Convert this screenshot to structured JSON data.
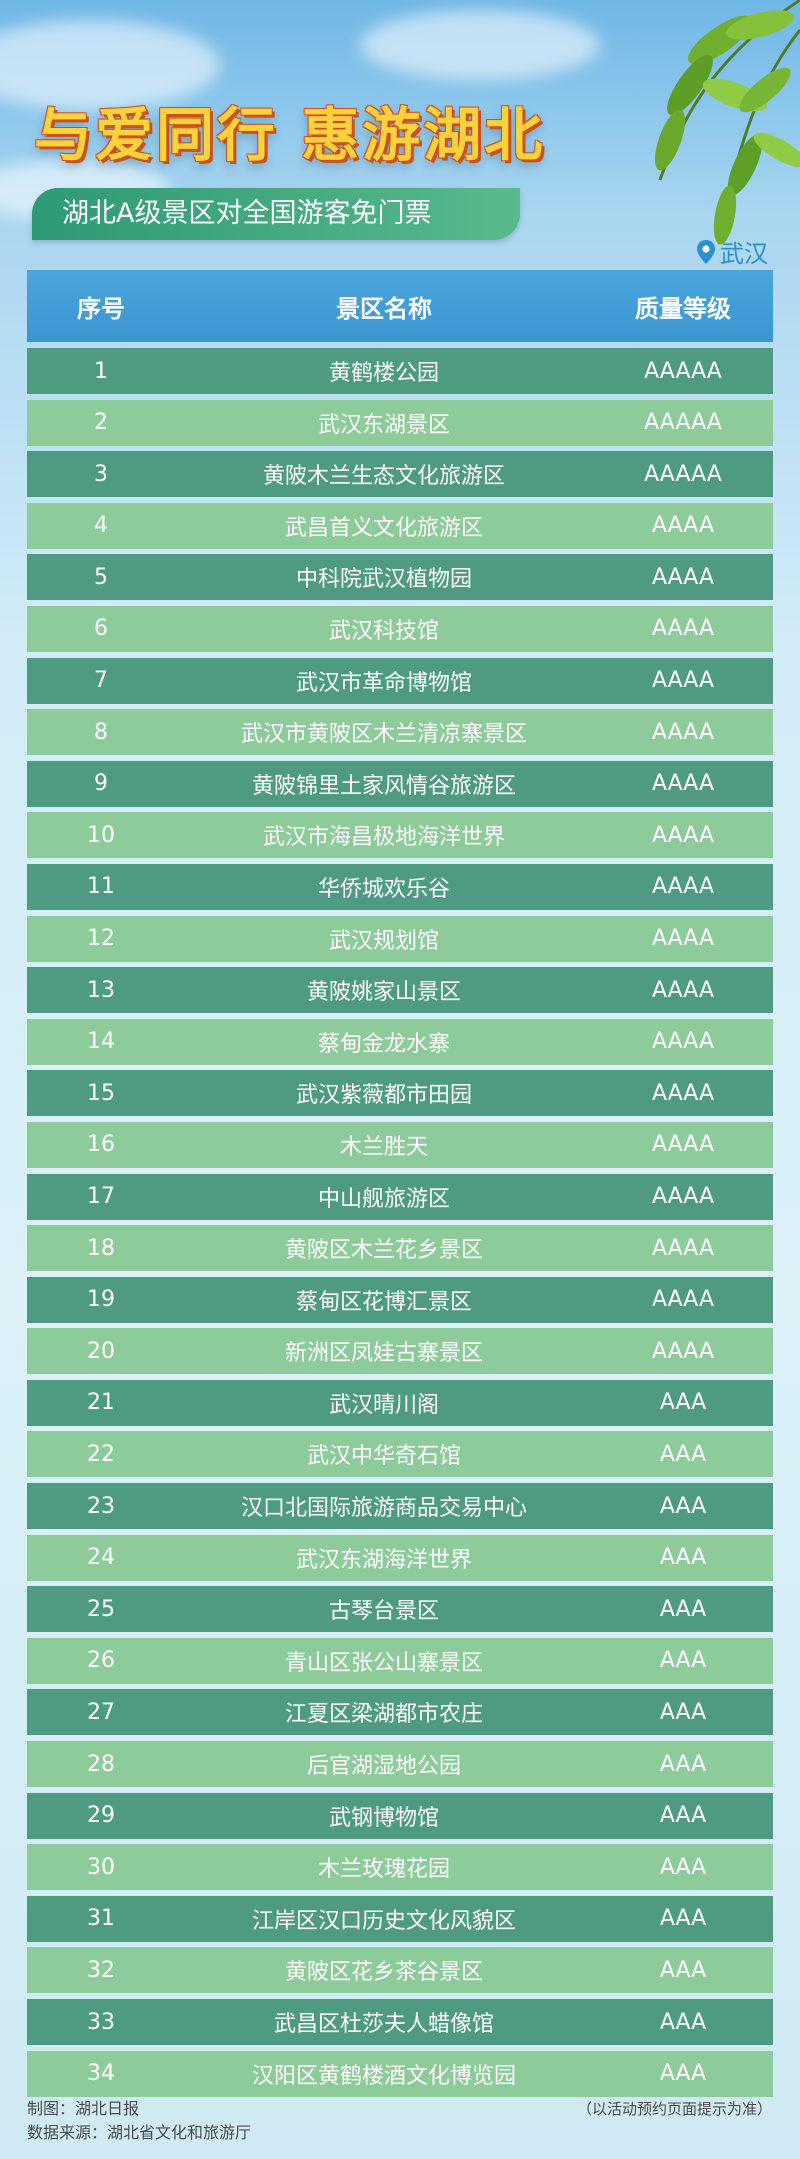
{
  "header": {
    "title": "与爱同行 惠游湖北",
    "subtitle": "湖北A级景区对全国游客免门票",
    "location": "武汉"
  },
  "table": {
    "columns": [
      "序号",
      "景区名称",
      "质量等级"
    ],
    "rows": [
      {
        "no": "1",
        "name": "黄鹤楼公园",
        "grade": "AAAAA"
      },
      {
        "no": "2",
        "name": "武汉东湖景区",
        "grade": "AAAAA"
      },
      {
        "no": "3",
        "name": "黄陂木兰生态文化旅游区",
        "grade": "AAAAA"
      },
      {
        "no": "4",
        "name": "武昌首义文化旅游区",
        "grade": "AAAA"
      },
      {
        "no": "5",
        "name": "中科院武汉植物园",
        "grade": "AAAA"
      },
      {
        "no": "6",
        "name": "武汉科技馆",
        "grade": "AAAA"
      },
      {
        "no": "7",
        "name": "武汉市革命博物馆",
        "grade": "AAAA"
      },
      {
        "no": "8",
        "name": "武汉市黄陂区木兰清凉寨景区",
        "grade": "AAAA"
      },
      {
        "no": "9",
        "name": "黄陂锦里土家风情谷旅游区",
        "grade": "AAAA"
      },
      {
        "no": "10",
        "name": "武汉市海昌极地海洋世界",
        "grade": "AAAA"
      },
      {
        "no": "11",
        "name": "华侨城欢乐谷",
        "grade": "AAAA"
      },
      {
        "no": "12",
        "name": "武汉规划馆",
        "grade": "AAAA"
      },
      {
        "no": "13",
        "name": "黄陂姚家山景区",
        "grade": "AAAA"
      },
      {
        "no": "14",
        "name": "蔡甸金龙水寨",
        "grade": "AAAA"
      },
      {
        "no": "15",
        "name": "武汉紫薇都市田园",
        "grade": "AAAA"
      },
      {
        "no": "16",
        "name": "木兰胜天",
        "grade": "AAAA"
      },
      {
        "no": "17",
        "name": "中山舰旅游区",
        "grade": "AAAA"
      },
      {
        "no": "18",
        "name": "黄陂区木兰花乡景区",
        "grade": "AAAA"
      },
      {
        "no": "19",
        "name": "蔡甸区花博汇景区",
        "grade": "AAAA"
      },
      {
        "no": "20",
        "name": "新洲区凤娃古寨景区",
        "grade": "AAAA"
      },
      {
        "no": "21",
        "name": "武汉晴川阁",
        "grade": "AAA"
      },
      {
        "no": "22",
        "name": "武汉中华奇石馆",
        "grade": "AAA"
      },
      {
        "no": "23",
        "name": "汉口北国际旅游商品交易中心",
        "grade": "AAA"
      },
      {
        "no": "24",
        "name": "武汉东湖海洋世界",
        "grade": "AAA"
      },
      {
        "no": "25",
        "name": "古琴台景区",
        "grade": "AAA"
      },
      {
        "no": "26",
        "name": "青山区张公山寨景区",
        "grade": "AAA"
      },
      {
        "no": "27",
        "name": "江夏区梁湖都市农庄",
        "grade": "AAA"
      },
      {
        "no": "28",
        "name": "后官湖湿地公园",
        "grade": "AAA"
      },
      {
        "no": "29",
        "name": "武钢博物馆",
        "grade": "AAA"
      },
      {
        "no": "30",
        "name": "木兰玫瑰花园",
        "grade": "AAA"
      },
      {
        "no": "31",
        "name": "江岸区汉口历史文化风貌区",
        "grade": "AAA"
      },
      {
        "no": "32",
        "name": "黄陂区花乡茶谷景区",
        "grade": "AAA"
      },
      {
        "no": "33",
        "name": "武昌区杜莎夫人蜡像馆",
        "grade": "AAA"
      },
      {
        "no": "34",
        "name": "汉阳区黄鹤楼酒文化博览园",
        "grade": "AAA"
      }
    ]
  },
  "footer": {
    "producer": "制图：湖北日报",
    "source": "数据来源：湖北省文化和旅游厅",
    "note": "（以活动预约页面提示为准）"
  },
  "colors": {
    "title_fill": "#ffd23d",
    "title_outline": "#c9531f",
    "subtitle_bg": "#2e9a73",
    "header_bg": "#3b95cf",
    "row_dark": "#4e9b82",
    "row_light": "#8ecb9b",
    "location_text": "#2a8fcf"
  },
  "icons": [
    "leaf-decoration-icon",
    "map-pin-icon"
  ]
}
